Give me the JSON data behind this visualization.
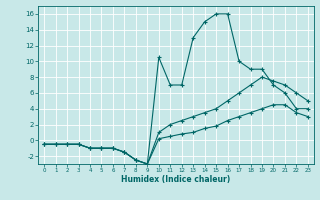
{
  "xlabel": "Humidex (Indice chaleur)",
  "bg_color": "#c8e8e8",
  "grid_color": "#ffffff",
  "line_color": "#006666",
  "x_values": [
    0,
    1,
    2,
    3,
    4,
    5,
    6,
    7,
    8,
    9,
    10,
    11,
    12,
    13,
    14,
    15,
    16,
    17,
    18,
    19,
    20,
    21,
    22,
    23
  ],
  "line1": [
    -0.5,
    -0.5,
    -0.5,
    -0.5,
    -1,
    -1,
    -1,
    -1.5,
    -2.5,
    -3,
    10.5,
    7,
    7,
    13,
    15,
    16,
    16,
    10,
    9,
    9,
    7,
    6,
    4,
    4
  ],
  "line2": [
    -0.5,
    -0.5,
    -0.5,
    -0.5,
    -1,
    -1,
    -1,
    -1.5,
    -2.5,
    -3,
    1,
    2,
    2.5,
    3,
    3.5,
    4,
    5,
    6,
    7,
    8,
    7.5,
    7,
    6,
    5
  ],
  "line3": [
    -0.5,
    -0.5,
    -0.5,
    -0.5,
    -1,
    -1,
    -1,
    -1.5,
    -2.5,
    -3,
    0.2,
    0.5,
    0.8,
    1,
    1.5,
    1.8,
    2.5,
    3,
    3.5,
    4,
    4.5,
    4.5,
    3.5,
    3
  ],
  "ylim": [
    -3,
    17
  ],
  "xlim": [
    -0.5,
    23.5
  ],
  "yticks": [
    -2,
    0,
    2,
    4,
    6,
    8,
    10,
    12,
    14,
    16
  ],
  "xticks": [
    0,
    1,
    2,
    3,
    4,
    5,
    6,
    7,
    8,
    9,
    10,
    11,
    12,
    13,
    14,
    15,
    16,
    17,
    18,
    19,
    20,
    21,
    22,
    23
  ]
}
